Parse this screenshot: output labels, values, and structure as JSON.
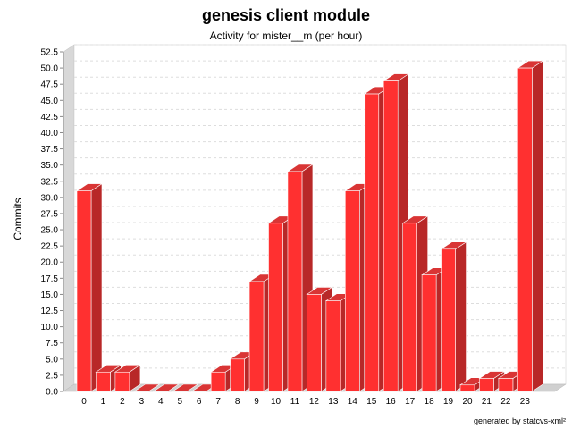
{
  "chart_data": {
    "type": "bar",
    "title": "genesis client module",
    "subtitle": "Activity for mister__m (per hour)",
    "ylabel": "Commits",
    "xlabel": "",
    "categories": [
      "0",
      "1",
      "2",
      "3",
      "4",
      "5",
      "6",
      "7",
      "8",
      "9",
      "10",
      "11",
      "12",
      "13",
      "14",
      "15",
      "16",
      "17",
      "18",
      "19",
      "20",
      "21",
      "22",
      "23"
    ],
    "values": [
      31,
      3,
      3,
      0,
      0,
      0,
      0,
      3,
      5,
      17,
      26,
      34,
      15,
      14,
      31,
      46,
      48,
      26,
      18,
      22,
      1,
      2,
      2,
      50
    ],
    "ylim": [
      0,
      52.5
    ],
    "ytick_step": 2.5,
    "grid": true,
    "legend": "none",
    "bar_color": "#ff3030",
    "footer": "generated by statcvs-xml²"
  }
}
